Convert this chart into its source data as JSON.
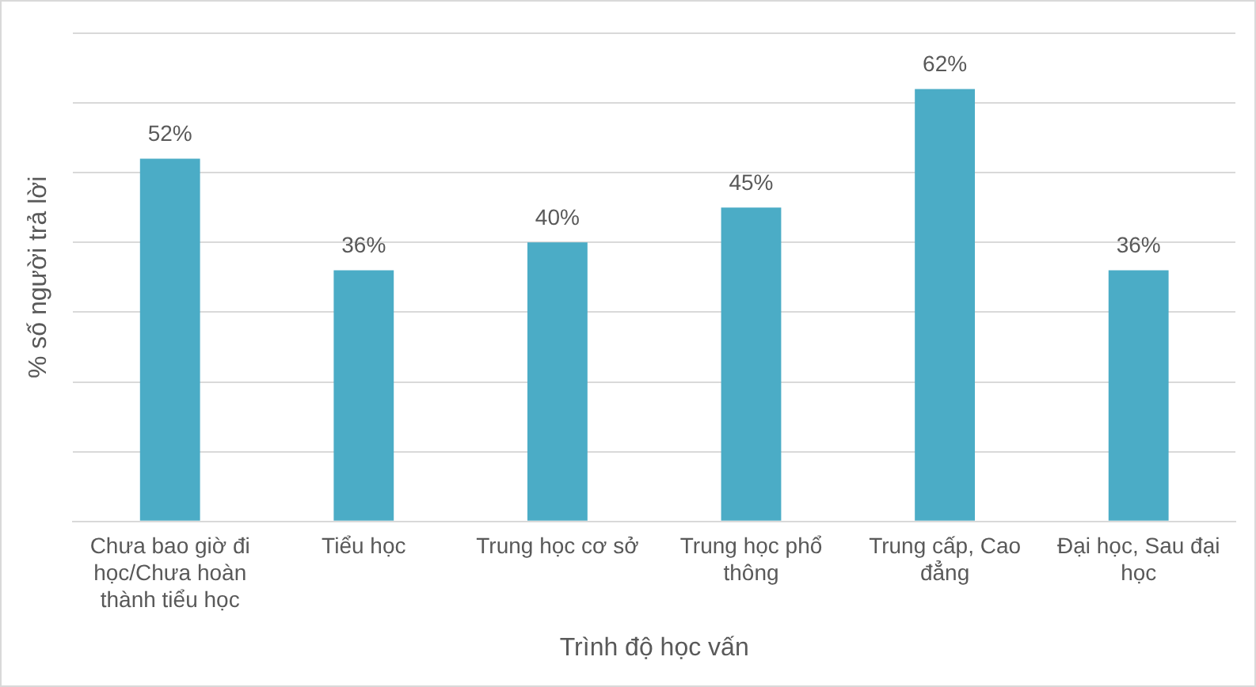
{
  "chart_data": {
    "type": "bar",
    "xlabel": "Trình độ học vấn",
    "ylabel": "% số người trả lời",
    "categories": [
      "Chưa bao giờ đi học/Chưa hoàn thành tiểu học",
      "Tiểu học",
      "Trung học cơ sở",
      "Trung học phổ thông",
      "Trung cấp, Cao đẳng",
      "Đại học, Sau đại học"
    ],
    "values": [
      52,
      36,
      40,
      45,
      62,
      36
    ],
    "value_labels": [
      "52%",
      "36%",
      "40%",
      "45%",
      "62%",
      "36%"
    ],
    "color": "#4bacc6",
    "ylim": [
      0,
      70
    ],
    "yticks": [
      {
        "value": 0,
        "label": null
      },
      {
        "value": 10,
        "label": null
      },
      {
        "value": 20,
        "label": null
      },
      {
        "value": 30,
        "label": null
      },
      {
        "value": 40,
        "label": null
      },
      {
        "value": 50,
        "label": null
      },
      {
        "value": 60,
        "label": null
      },
      {
        "value": 70,
        "label": null
      }
    ],
    "grid": "y"
  }
}
